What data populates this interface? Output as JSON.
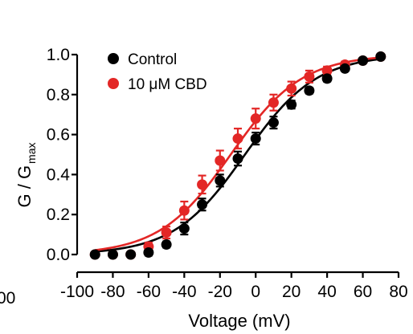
{
  "chart_data": {
    "type": "scatter",
    "xlabel": "Voltage (mV)",
    "ylabel": "G / G",
    "ylabel_sub": "max",
    "xlim": [
      -100,
      80
    ],
    "ylim": [
      0.0,
      1.0
    ],
    "x_ticks": [
      -100,
      -80,
      -60,
      -40,
      -20,
      0,
      20,
      40,
      60,
      80
    ],
    "x_tick_labels": [
      "-100",
      "-80",
      "-60",
      "-40",
      "-20",
      "0",
      "20",
      "40",
      "60",
      "80"
    ],
    "y_ticks": [
      0.0,
      0.2,
      0.4,
      0.6,
      0.8,
      1.0
    ],
    "y_tick_labels": [
      "0.0",
      "0.2",
      "0.4",
      "0.6",
      "0.8",
      "1.0"
    ],
    "clipped_left_tick_label": "00",
    "grid": false,
    "legend_position": "top-left",
    "fit_curves": "Boltzmann",
    "series": [
      {
        "name": "Control",
        "color": "#000000",
        "x": [
          -90,
          -80,
          -70,
          -60,
          -50,
          -40,
          -30,
          -20,
          -10,
          0,
          10,
          20,
          30,
          40,
          50,
          60,
          70
        ],
        "y": [
          0.0,
          0.0,
          0.0,
          0.01,
          0.05,
          0.13,
          0.25,
          0.37,
          0.48,
          0.58,
          0.66,
          0.75,
          0.82,
          0.88,
          0.93,
          0.97,
          0.99
        ],
        "err": [
          0.01,
          0.01,
          0.01,
          0.015,
          0.015,
          0.03,
          0.03,
          0.03,
          0.035,
          0.03,
          0.03,
          0.02,
          0.015,
          0.015,
          0.01,
          0.01,
          0.01
        ],
        "fit": {
          "v_half": -6,
          "slope": 20
        }
      },
      {
        "name": "10 μM CBD",
        "color": "#e32726",
        "x": [
          -90,
          -80,
          -70,
          -60,
          -50,
          -40,
          -30,
          -20,
          -10,
          0,
          10,
          20,
          30,
          40,
          50,
          60,
          70
        ],
        "y": [
          0.0,
          0.0,
          0.0,
          0.04,
          0.11,
          0.22,
          0.35,
          0.47,
          0.58,
          0.68,
          0.76,
          0.83,
          0.89,
          0.92,
          0.95,
          0.97,
          0.99
        ],
        "err": [
          0.01,
          0.01,
          0.01,
          0.02,
          0.03,
          0.045,
          0.045,
          0.05,
          0.05,
          0.05,
          0.04,
          0.035,
          0.03,
          0.02,
          0.015,
          0.01,
          0.01
        ],
        "fit": {
          "v_half": -14,
          "slope": 20
        }
      }
    ]
  }
}
